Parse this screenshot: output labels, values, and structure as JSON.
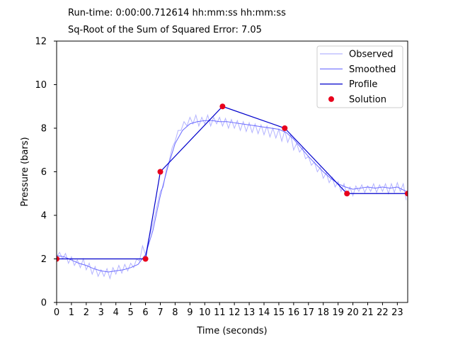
{
  "header": {
    "runtime": "Run-time: 0:00:00.712614 hh:mm:ss hh:mm:ss",
    "error": "Sq-Root of the Sum of Squared Error: 7.05"
  },
  "chart_data": {
    "type": "line",
    "xlabel": "Time (seconds)",
    "ylabel": "Pressure (bars)",
    "xlim": [
      0,
      23.7
    ],
    "ylim": [
      0,
      12
    ],
    "xticks": [
      0,
      1,
      2,
      3,
      4,
      5,
      6,
      7,
      8,
      9,
      10,
      11,
      12,
      13,
      14,
      15,
      16,
      17,
      18,
      19,
      20,
      21,
      22,
      23
    ],
    "yticks": [
      0,
      2,
      4,
      6,
      8,
      10,
      12
    ],
    "grid": false,
    "legend_position": "top-right",
    "series": [
      {
        "name": "Observed",
        "kind": "line",
        "color": "#b3b3ff",
        "x": [
          0,
          0.2,
          0.4,
          0.6,
          0.8,
          1,
          1.2,
          1.4,
          1.6,
          1.8,
          2,
          2.2,
          2.4,
          2.6,
          2.8,
          3,
          3.2,
          3.4,
          3.6,
          3.8,
          4,
          4.2,
          4.4,
          4.6,
          4.8,
          5,
          5.2,
          5.4,
          5.6,
          5.8,
          6,
          6.2,
          6.4,
          6.6,
          6.8,
          7,
          7.2,
          7.4,
          7.6,
          7.8,
          8,
          8.2,
          8.4,
          8.6,
          8.8,
          9,
          9.2,
          9.4,
          9.6,
          9.8,
          10,
          10.2,
          10.4,
          10.6,
          10.8,
          11,
          11.2,
          11.4,
          11.6,
          11.8,
          12,
          12.2,
          12.4,
          12.6,
          12.8,
          13,
          13.2,
          13.4,
          13.6,
          13.8,
          14,
          14.2,
          14.4,
          14.6,
          14.8,
          15,
          15.2,
          15.4,
          15.6,
          15.8,
          16,
          16.2,
          16.4,
          16.6,
          16.8,
          17,
          17.2,
          17.4,
          17.6,
          17.8,
          18,
          18.2,
          18.4,
          18.6,
          18.8,
          19,
          19.2,
          19.4,
          19.6,
          19.8,
          20,
          20.2,
          20.4,
          20.6,
          20.8,
          21,
          21.2,
          21.4,
          21.6,
          21.8,
          22,
          22.2,
          22.4,
          22.6,
          22.8,
          23,
          23.2,
          23.4,
          23.6
        ],
        "y": [
          2.1,
          2.3,
          2.0,
          2.25,
          1.8,
          2.1,
          1.7,
          1.95,
          1.6,
          2.0,
          1.5,
          1.8,
          1.3,
          1.65,
          1.2,
          1.5,
          1.2,
          1.55,
          1.1,
          1.6,
          1.3,
          1.7,
          1.35,
          1.75,
          1.45,
          1.8,
          1.6,
          2.0,
          1.9,
          2.6,
          2.2,
          2.9,
          3.3,
          3.9,
          4.5,
          5.1,
          5.3,
          6.1,
          6.5,
          7.1,
          7.4,
          7.9,
          7.9,
          8.3,
          8.1,
          8.5,
          8.2,
          8.6,
          8.1,
          8.5,
          8.2,
          8.6,
          8.1,
          8.5,
          8.2,
          8.5,
          8.1,
          8.45,
          8.0,
          8.4,
          8.0,
          8.35,
          7.9,
          8.3,
          7.85,
          8.25,
          7.8,
          8.2,
          7.75,
          8.15,
          7.7,
          8.1,
          7.6,
          8.0,
          7.55,
          7.95,
          7.4,
          7.9,
          7.35,
          7.7,
          7.0,
          7.3,
          6.9,
          7.1,
          6.6,
          6.7,
          6.3,
          6.45,
          6.0,
          6.2,
          5.7,
          5.95,
          5.5,
          5.75,
          5.3,
          5.55,
          5.1,
          5.45,
          4.9,
          5.3,
          4.9,
          5.35,
          5.1,
          5.4,
          5.05,
          5.35,
          5.1,
          5.45,
          5.05,
          5.4,
          5.1,
          5.45,
          5.0,
          5.45,
          5.05,
          5.5,
          5.1,
          5.45,
          4.7
        ]
      },
      {
        "name": "Smoothed",
        "kind": "line",
        "color": "#6b6bff",
        "x": [
          0,
          0.5,
          1,
          1.5,
          2,
          2.5,
          3,
          3.5,
          4,
          4.5,
          5,
          5.5,
          6,
          6.5,
          7,
          7.5,
          8,
          8.5,
          9,
          9.5,
          10,
          10.5,
          11,
          11.5,
          12,
          12.5,
          13,
          13.5,
          14,
          14.5,
          15,
          15.5,
          16,
          16.5,
          17,
          17.5,
          18,
          18.5,
          19,
          19.5,
          20,
          20.5,
          21,
          21.5,
          22,
          22.5,
          23,
          23.6
        ],
        "y": [
          2.15,
          2.1,
          1.95,
          1.8,
          1.7,
          1.55,
          1.45,
          1.4,
          1.45,
          1.5,
          1.6,
          1.75,
          2.2,
          3.3,
          4.9,
          6.2,
          7.3,
          7.9,
          8.2,
          8.3,
          8.35,
          8.35,
          8.3,
          8.3,
          8.25,
          8.2,
          8.15,
          8.1,
          8.05,
          8.0,
          7.95,
          7.8,
          7.5,
          7.1,
          6.7,
          6.35,
          6.0,
          5.7,
          5.45,
          5.3,
          5.2,
          5.25,
          5.3,
          5.25,
          5.3,
          5.25,
          5.3,
          5.1
        ]
      },
      {
        "name": "Profile",
        "kind": "line",
        "color": "#0000cc",
        "x": [
          0,
          6,
          7,
          11.2,
          15.4,
          19.6,
          23.7
        ],
        "y": [
          2,
          2,
          6,
          9,
          8,
          5,
          5
        ]
      },
      {
        "name": "Solution",
        "kind": "scatter",
        "color": "#e8001c",
        "x": [
          0,
          6,
          7,
          11.2,
          15.4,
          19.6,
          23.7
        ],
        "y": [
          2,
          2,
          6,
          9,
          8,
          5,
          5
        ]
      }
    ]
  }
}
